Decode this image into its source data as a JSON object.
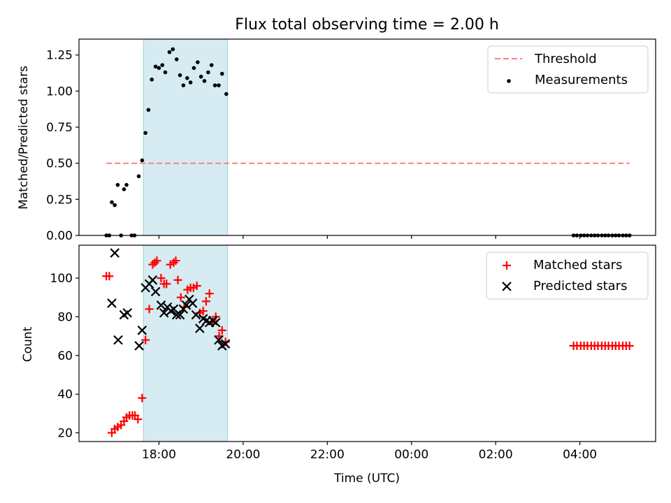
{
  "chart_data": [
    {
      "type": "scatter",
      "title": "Flux total observing time = 2.00 h",
      "xlabel": "",
      "ylabel": "Matched/Predicted stars",
      "xlim": [
        16.1,
        29.8
      ],
      "ylim": [
        0,
        1.36
      ],
      "yticks": [
        "0.00",
        "0.25",
        "0.50",
        "0.75",
        "1.00",
        "1.25"
      ],
      "ytick_values": [
        0,
        0.25,
        0.5,
        0.75,
        1.0,
        1.25
      ],
      "shaded_interval": [
        17.63,
        19.63
      ],
      "threshold": {
        "name": "Threshold",
        "y": 0.5,
        "x_range": [
          16.75,
          29.18
        ],
        "color": "#ff7f7f"
      },
      "legend_position": "top-right",
      "series": [
        {
          "name": "Measurements",
          "color": "#000000",
          "points": [
            [
              16.75,
              0.0
            ],
            [
              16.82,
              0.0
            ],
            [
              16.88,
              0.23
            ],
            [
              16.95,
              0.21
            ],
            [
              17.02,
              0.35
            ],
            [
              17.1,
              0.0
            ],
            [
              17.17,
              0.32
            ],
            [
              17.23,
              0.35
            ],
            [
              17.35,
              0.0
            ],
            [
              17.42,
              0.0
            ],
            [
              17.52,
              0.41
            ],
            [
              17.6,
              0.52
            ],
            [
              17.68,
              0.71
            ],
            [
              17.75,
              0.87
            ],
            [
              17.83,
              1.08
            ],
            [
              17.92,
              1.17
            ],
            [
              18.0,
              1.16
            ],
            [
              18.08,
              1.18
            ],
            [
              18.15,
              1.13
            ],
            [
              18.25,
              1.27
            ],
            [
              18.33,
              1.29
            ],
            [
              18.42,
              1.22
            ],
            [
              18.5,
              1.11
            ],
            [
              18.58,
              1.04
            ],
            [
              18.67,
              1.09
            ],
            [
              18.75,
              1.06
            ],
            [
              18.83,
              1.16
            ],
            [
              18.92,
              1.2
            ],
            [
              19.0,
              1.1
            ],
            [
              19.08,
              1.07
            ],
            [
              19.17,
              1.13
            ],
            [
              19.25,
              1.18
            ],
            [
              19.33,
              1.04
            ],
            [
              19.42,
              1.04
            ],
            [
              19.5,
              1.12
            ],
            [
              19.6,
              0.98
            ],
            [
              27.85,
              0.0
            ],
            [
              27.93,
              0.0
            ],
            [
              28.02,
              0.0
            ],
            [
              28.1,
              0.0
            ],
            [
              28.18,
              0.0
            ],
            [
              28.27,
              0.0
            ],
            [
              28.35,
              0.0
            ],
            [
              28.43,
              0.0
            ],
            [
              28.52,
              0.0
            ],
            [
              28.6,
              0.0
            ],
            [
              28.68,
              0.0
            ],
            [
              28.77,
              0.0
            ],
            [
              28.85,
              0.0
            ],
            [
              28.93,
              0.0
            ],
            [
              29.02,
              0.0
            ],
            [
              29.1,
              0.0
            ],
            [
              29.18,
              0.0
            ]
          ]
        }
      ]
    },
    {
      "type": "scatter",
      "title": "",
      "xlabel": "Time (UTC)",
      "ylabel": "Count",
      "xlim": [
        16.1,
        29.8
      ],
      "ylim": [
        15.5,
        117
      ],
      "xticks": [
        "18:00",
        "20:00",
        "22:00",
        "00:00",
        "02:00",
        "04:00"
      ],
      "xtick_values": [
        18,
        20,
        22,
        24,
        26,
        28
      ],
      "yticks": [
        "20",
        "40",
        "60",
        "80",
        "100"
      ],
      "ytick_values": [
        20,
        40,
        60,
        80,
        100
      ],
      "shaded_interval": [
        17.63,
        19.63
      ],
      "legend_position": "top-right",
      "series": [
        {
          "name": "Matched stars",
          "color": "#ff0000",
          "marker": "plus",
          "points": [
            [
              16.75,
              101
            ],
            [
              16.82,
              101
            ],
            [
              16.88,
              20
            ],
            [
              16.95,
              22
            ],
            [
              17.02,
              23
            ],
            [
              17.1,
              24
            ],
            [
              17.17,
              26
            ],
            [
              17.23,
              28
            ],
            [
              17.3,
              29
            ],
            [
              17.37,
              29
            ],
            [
              17.43,
              29
            ],
            [
              17.5,
              27
            ],
            [
              17.6,
              38
            ],
            [
              17.68,
              68
            ],
            [
              17.77,
              84
            ],
            [
              17.85,
              107
            ],
            [
              17.9,
              108
            ],
            [
              17.95,
              109
            ],
            [
              18.05,
              100
            ],
            [
              18.12,
              97
            ],
            [
              18.18,
              97
            ],
            [
              18.27,
              107
            ],
            [
              18.35,
              108
            ],
            [
              18.4,
              109
            ],
            [
              18.45,
              99
            ],
            [
              18.52,
              90
            ],
            [
              18.6,
              85
            ],
            [
              18.68,
              94
            ],
            [
              18.75,
              95
            ],
            [
              18.82,
              95
            ],
            [
              18.9,
              96
            ],
            [
              18.97,
              82
            ],
            [
              19.05,
              83
            ],
            [
              19.12,
              88
            ],
            [
              19.2,
              92
            ],
            [
              19.28,
              77
            ],
            [
              19.35,
              80
            ],
            [
              19.43,
              70
            ],
            [
              19.5,
              73
            ],
            [
              19.58,
              67
            ],
            [
              27.85,
              65
            ],
            [
              27.93,
              65
            ],
            [
              28.02,
              65
            ],
            [
              28.1,
              65
            ],
            [
              28.18,
              65
            ],
            [
              28.27,
              65
            ],
            [
              28.35,
              65
            ],
            [
              28.43,
              65
            ],
            [
              28.52,
              65
            ],
            [
              28.6,
              65
            ],
            [
              28.68,
              65
            ],
            [
              28.77,
              65
            ],
            [
              28.85,
              65
            ],
            [
              28.93,
              65
            ],
            [
              29.02,
              65
            ],
            [
              29.1,
              65
            ],
            [
              29.18,
              65
            ]
          ]
        },
        {
          "name": "Predicted stars",
          "color": "#000000",
          "marker": "x",
          "points": [
            [
              16.88,
              87
            ],
            [
              16.95,
              113
            ],
            [
              17.03,
              68
            ],
            [
              17.17,
              81
            ],
            [
              17.25,
              82
            ],
            [
              17.53,
              65
            ],
            [
              17.6,
              73
            ],
            [
              17.68,
              95
            ],
            [
              17.77,
              97
            ],
            [
              17.85,
              99
            ],
            [
              17.92,
              93
            ],
            [
              18.05,
              86
            ],
            [
              18.12,
              82
            ],
            [
              18.2,
              85
            ],
            [
              18.28,
              83
            ],
            [
              18.35,
              84
            ],
            [
              18.42,
              81
            ],
            [
              18.5,
              81
            ],
            [
              18.58,
              84
            ],
            [
              18.65,
              86
            ],
            [
              18.72,
              89
            ],
            [
              18.8,
              87
            ],
            [
              18.88,
              81
            ],
            [
              18.97,
              74
            ],
            [
              19.05,
              79
            ],
            [
              19.13,
              78
            ],
            [
              19.2,
              77
            ],
            [
              19.28,
              78
            ],
            [
              19.35,
              77
            ],
            [
              19.42,
              68
            ],
            [
              19.5,
              65
            ],
            [
              19.58,
              66
            ]
          ]
        }
      ]
    }
  ]
}
